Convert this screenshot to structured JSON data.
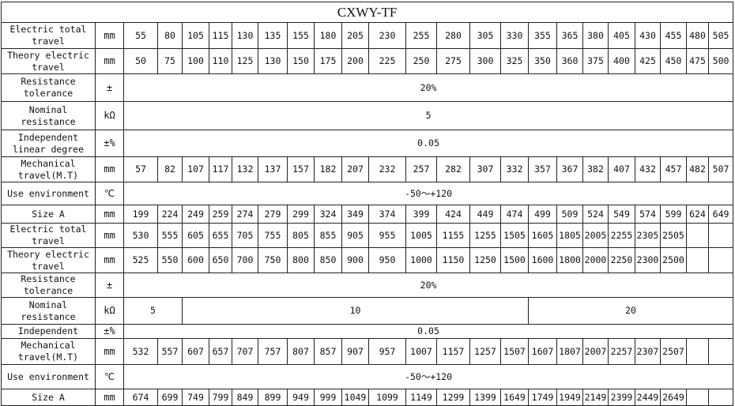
{
  "title": "CXWY-TF",
  "rows": [
    {
      "label": "Electric total travel",
      "unit": "mm",
      "values": [
        "55",
        "80",
        "105",
        "115",
        "130",
        "135",
        "155",
        "180",
        "205",
        "230",
        "255",
        "280",
        "305",
        "330",
        "355",
        "365",
        "380",
        "405",
        "430",
        "455",
        "480",
        "505"
      ]
    },
    {
      "label": "Theory electric travel",
      "unit": "mm",
      "values": [
        "50",
        "75",
        "100",
        "110",
        "125",
        "130",
        "150",
        "175",
        "200",
        "225",
        "250",
        "275",
        "300",
        "325",
        "350",
        "360",
        "375",
        "400",
        "425",
        "450",
        "475",
        "500"
      ]
    },
    {
      "label": "Resistance tolerance",
      "unit": "±",
      "spans": [
        {
          "value": "20%",
          "colspan": 22
        }
      ]
    },
    {
      "label": "Nominal resistance",
      "unit": "kΩ",
      "spans": [
        {
          "value": "5",
          "colspan": 22
        }
      ]
    },
    {
      "label": "Independent linear degree",
      "unit": "±%",
      "spans": [
        {
          "value": "0.05",
          "colspan": 22
        }
      ]
    },
    {
      "label": "Mechanical travel(M.T)",
      "unit": "mm",
      "values": [
        "57",
        "82",
        "107",
        "117",
        "132",
        "137",
        "157",
        "182",
        "207",
        "232",
        "257",
        "282",
        "307",
        "332",
        "357",
        "367",
        "382",
        "407",
        "432",
        "457",
        "482",
        "507"
      ]
    },
    {
      "label": "Use environment",
      "unit": "℃",
      "spans": [
        {
          "value": "-50～+120",
          "colspan": 22
        }
      ]
    },
    {
      "label": "Size A",
      "unit": "mm",
      "values": [
        "199",
        "224",
        "249",
        "259",
        "274",
        "279",
        "299",
        "324",
        "349",
        "374",
        "399",
        "424",
        "449",
        "474",
        "499",
        "509",
        "524",
        "549",
        "574",
        "599",
        "624",
        "649"
      ]
    },
    {
      "label": "Electric total travel",
      "unit": "mm",
      "values": [
        "530",
        "555",
        "605",
        "655",
        "705",
        "755",
        "805",
        "855",
        "905",
        "955",
        "1005",
        "1155",
        "1255",
        "1505",
        "1605",
        "1805",
        "2005",
        "2255",
        "2305",
        "2505",
        "",
        ""
      ]
    },
    {
      "label": "Theory electric travel",
      "unit": "mm",
      "values": [
        "525",
        "550",
        "600",
        "650",
        "700",
        "750",
        "800",
        "850",
        "900",
        "950",
        "1000",
        "1150",
        "1250",
        "1500",
        "1600",
        "1800",
        "2000",
        "2250",
        "2300",
        "2500",
        "",
        ""
      ]
    },
    {
      "label": "Resistance tolerance",
      "unit": "±",
      "spans": [
        {
          "value": "20%",
          "colspan": 22
        }
      ]
    },
    {
      "label": "Nominal resistance",
      "unit": "kΩ",
      "spans": [
        {
          "value": "5",
          "colspan": 2
        },
        {
          "value": "10",
          "colspan": 12
        },
        {
          "value": "20",
          "colspan": 8
        }
      ]
    },
    {
      "label": "Independent",
      "unit": "±%",
      "spans": [
        {
          "value": "0.05",
          "colspan": 22
        }
      ]
    },
    {
      "label": "Mechanical travel(M.T)",
      "unit": "mm",
      "values": [
        "532",
        "557",
        "607",
        "657",
        "707",
        "757",
        "807",
        "857",
        "907",
        "957",
        "1007",
        "1157",
        "1257",
        "1507",
        "1607",
        "1807",
        "2007",
        "2257",
        "2307",
        "2507",
        "",
        ""
      ]
    },
    {
      "label": "Use environment",
      "unit": "℃",
      "spans": [
        {
          "value": "-50～+120",
          "colspan": 22
        }
      ]
    },
    {
      "label": "Size A",
      "unit": "mm",
      "values": [
        "674",
        "699",
        "749",
        "799",
        "849",
        "899",
        "949",
        "999",
        "1049",
        "1099",
        "1149",
        "1299",
        "1399",
        "1649",
        "1749",
        "1949",
        "2149",
        "2399",
        "2449",
        "2649",
        "",
        ""
      ]
    }
  ]
}
